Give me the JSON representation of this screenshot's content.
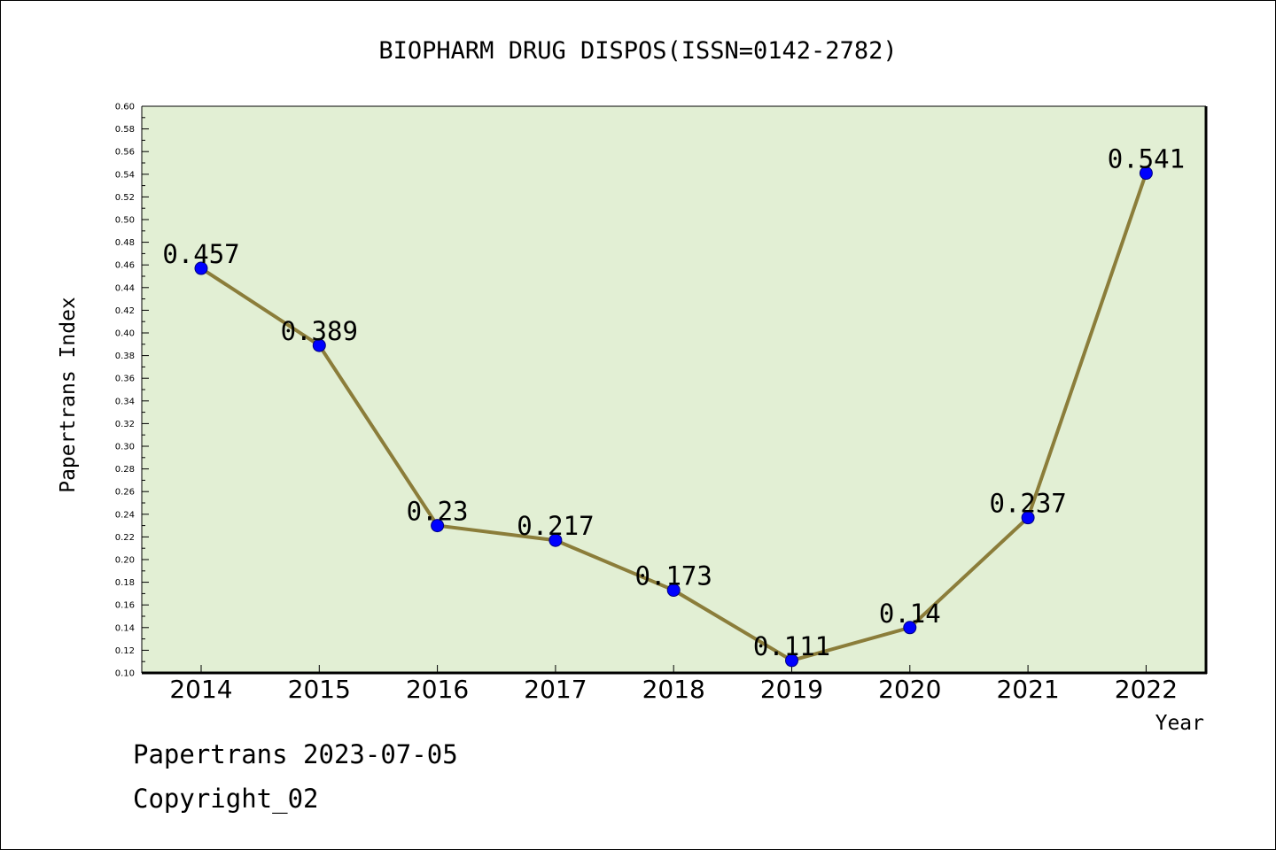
{
  "chart_data": {
    "type": "line",
    "title": "BIOPHARM DRUG DISPOS(ISSN=0142-2782)",
    "xlabel": "Year",
    "ylabel": "Papertrans Index",
    "categories": [
      "2014",
      "2015",
      "2016",
      "2017",
      "2018",
      "2019",
      "2020",
      "2021",
      "2022"
    ],
    "values": [
      0.457,
      0.389,
      0.23,
      0.217,
      0.173,
      0.111,
      0.14,
      0.237,
      0.541
    ],
    "data_labels": [
      "0.457",
      "0.389",
      "0.23",
      "0.217",
      "0.173",
      "0.111",
      "0.14",
      "0.237",
      "0.541"
    ],
    "ylim": [
      0.1,
      0.6
    ],
    "ytick_step": 0.02,
    "grid": false,
    "legend": "none",
    "colors": {
      "plot_background": "#e2efd4",
      "line": "#8b7d3a",
      "marker": "#0000ff",
      "marker_edge": "#000080"
    }
  },
  "footer": {
    "line1": "Papertrans 2023-07-05",
    "line2": "Copyright_02"
  }
}
